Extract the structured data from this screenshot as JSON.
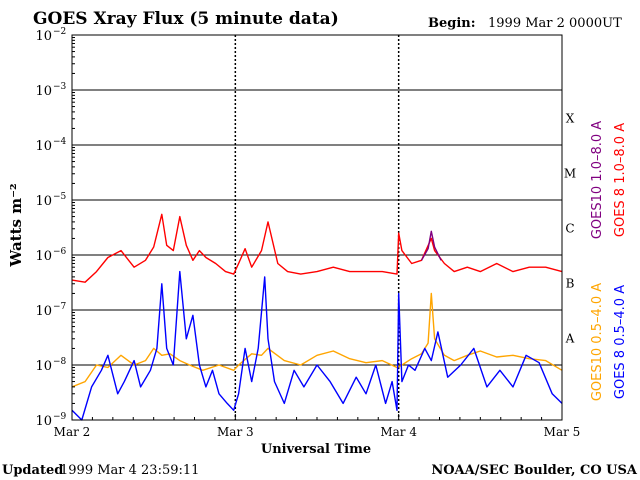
{
  "header": {
    "title": "GOES Xray Flux (5 minute data)",
    "begin_label": "Begin:",
    "begin_value": "1999 Mar 2 0000UT"
  },
  "footer": {
    "updated_label": "Updated",
    "updated_value": "1999 Mar  4 23:59:11",
    "credit": "NOAA/SEC Boulder, CO USA"
  },
  "colors": {
    "goes10_long": "#800080",
    "goes8_long": "#ff0000",
    "goes10_short": "#ffa500",
    "goes8_short": "#0000ff",
    "axes": "#000000"
  },
  "chart_data": {
    "type": "line",
    "title": "GOES Xray Flux (5 minute data)",
    "xlabel": "Universal Time",
    "ylabel": "Watts m⁻²",
    "yscale": "log",
    "ylim": [
      1e-09,
      0.01
    ],
    "xlim": [
      0,
      3
    ],
    "x_unit": "days from 1999 Mar 2 00:00 UT",
    "x_ticks": [
      {
        "x": 0,
        "label": "Mar 2"
      },
      {
        "x": 1,
        "label": "Mar 3"
      },
      {
        "x": 2,
        "label": "Mar 4"
      },
      {
        "x": 3,
        "label": "Mar 5"
      }
    ],
    "y_ticks": [
      {
        "exp": -9,
        "label": "10"
      },
      {
        "exp": -8,
        "label": "10"
      },
      {
        "exp": -7,
        "label": "10"
      },
      {
        "exp": -6,
        "label": "10"
      },
      {
        "exp": -5,
        "label": "10"
      },
      {
        "exp": -4,
        "label": "10"
      },
      {
        "exp": -3,
        "label": "10"
      },
      {
        "exp": -2,
        "label": "10"
      }
    ],
    "flare_classes": [
      {
        "label": "A",
        "exp": -7.5
      },
      {
        "label": "B",
        "exp": -6.5
      },
      {
        "label": "C",
        "exp": -5.5
      },
      {
        "label": "M",
        "exp": -4.5
      },
      {
        "label": "X",
        "exp": -3.5
      }
    ],
    "grid": {
      "horizontal": [
        -8,
        -7,
        -6,
        -5,
        -4,
        -3
      ],
      "day_dividers": [
        1,
        2
      ]
    },
    "legend": [
      {
        "label": "GOES10 1.0–8.0 A",
        "color": "#800080"
      },
      {
        "label": "GOES 8 1.0–8.0 A",
        "color": "#ff0000"
      },
      {
        "label": "GOES10 0.5–4.0 A",
        "color": "#ffa500"
      },
      {
        "label": "GOES 8 0.5–4.0 A",
        "color": "#0000ff"
      }
    ],
    "series": [
      {
        "name": "GOES 8 1.0–8.0 A",
        "color": "#ff0000",
        "x": [
          0,
          0.08,
          0.15,
          0.22,
          0.3,
          0.38,
          0.45,
          0.5,
          0.55,
          0.58,
          0.62,
          0.66,
          0.7,
          0.74,
          0.78,
          0.82,
          0.88,
          0.94,
          0.99,
          1.02,
          1.06,
          1.1,
          1.16,
          1.2,
          1.26,
          1.32,
          1.4,
          1.5,
          1.6,
          1.7,
          1.8,
          1.9,
          1.99,
          2.0,
          2.02,
          2.08,
          2.14,
          2.2,
          2.22,
          2.28,
          2.34,
          2.42,
          2.5,
          2.6,
          2.7,
          2.8,
          2.9,
          3.0
        ],
        "values": [
          3.5e-07,
          3.2e-07,
          5e-07,
          9e-07,
          1.2e-06,
          6e-07,
          8e-07,
          1.4e-06,
          5.5e-06,
          1.5e-06,
          1.2e-06,
          5e-06,
          1.5e-06,
          8e-07,
          1.2e-06,
          9e-07,
          7e-07,
          5e-07,
          4.5e-07,
          7e-07,
          1.3e-06,
          6e-07,
          1.2e-06,
          4e-06,
          7e-07,
          5e-07,
          4.5e-07,
          5e-07,
          6e-07,
          5e-07,
          5e-07,
          5e-07,
          4.5e-07,
          2.5e-06,
          1.2e-06,
          7e-07,
          8e-07,
          2e-06,
          1.2e-06,
          7e-07,
          5e-07,
          6e-07,
          5e-07,
          7e-07,
          5e-07,
          6e-07,
          6e-07,
          5e-07
        ]
      },
      {
        "name": "GOES10 1.0–8.0 A",
        "color": "#800080",
        "x": [
          2.14,
          2.18,
          2.2,
          2.22,
          2.26
        ],
        "values": [
          8e-07,
          1.3e-06,
          2.7e-06,
          1.4e-06,
          8e-07
        ]
      },
      {
        "name": "GOES10 0.5–4.0 A",
        "color": "#ffa500",
        "x": [
          0,
          0.08,
          0.15,
          0.22,
          0.3,
          0.38,
          0.45,
          0.5,
          0.55,
          0.6,
          0.66,
          0.72,
          0.8,
          0.9,
          0.99,
          1.02,
          1.1,
          1.16,
          1.2,
          1.3,
          1.4,
          1.5,
          1.6,
          1.7,
          1.8,
          1.9,
          1.99,
          2.02,
          2.08,
          2.14,
          2.18,
          2.2,
          2.22,
          2.28,
          2.34,
          2.42,
          2.5,
          2.6,
          2.7,
          2.8,
          2.9,
          3.0
        ],
        "values": [
          4e-09,
          5e-09,
          1e-08,
          9e-09,
          1.5e-08,
          1e-08,
          1.2e-08,
          2e-08,
          1.5e-08,
          1.6e-08,
          1.2e-08,
          1e-08,
          8e-09,
          1e-08,
          8e-09,
          1e-08,
          1.6e-08,
          1.5e-08,
          2e-08,
          1.2e-08,
          1e-08,
          1.5e-08,
          1.8e-08,
          1.3e-08,
          1.1e-08,
          1.2e-08,
          9e-09,
          1e-08,
          1.3e-08,
          1.6e-08,
          2.5e-08,
          2e-07,
          3e-08,
          1.5e-08,
          1.2e-08,
          1.5e-08,
          1.8e-08,
          1.4e-08,
          1.5e-08,
          1.3e-08,
          1.2e-08,
          8e-09
        ]
      },
      {
        "name": "GOES 8 0.5–4.0 A",
        "color": "#0000ff",
        "x": [
          0,
          0.06,
          0.12,
          0.18,
          0.22,
          0.28,
          0.32,
          0.38,
          0.42,
          0.48,
          0.52,
          0.55,
          0.58,
          0.62,
          0.66,
          0.7,
          0.74,
          0.78,
          0.82,
          0.86,
          0.9,
          0.95,
          0.99,
          1.02,
          1.06,
          1.1,
          1.14,
          1.18,
          1.2,
          1.24,
          1.3,
          1.36,
          1.42,
          1.5,
          1.58,
          1.66,
          1.74,
          1.8,
          1.86,
          1.92,
          1.96,
          1.99,
          2.0,
          2.02,
          2.06,
          2.1,
          2.16,
          2.2,
          2.24,
          2.3,
          2.38,
          2.46,
          2.54,
          2.62,
          2.7,
          2.78,
          2.86,
          2.94,
          3.0
        ],
        "values": [
          1.5e-09,
          1e-09,
          4e-09,
          8e-09,
          1.5e-08,
          3e-09,
          5e-09,
          1.2e-08,
          4e-09,
          8e-09,
          2e-08,
          3e-07,
          2e-08,
          1e-08,
          5e-07,
          3e-08,
          8e-08,
          1e-08,
          4e-09,
          8e-09,
          3e-09,
          2e-09,
          1.5e-09,
          3e-09,
          2e-08,
          5e-09,
          2e-08,
          4e-07,
          3e-08,
          5e-09,
          2e-09,
          8e-09,
          4e-09,
          1e-08,
          5e-09,
          2e-09,
          6e-09,
          3e-09,
          1e-08,
          2e-09,
          5e-09,
          1.5e-09,
          2e-07,
          5e-09,
          1e-08,
          8e-09,
          2e-08,
          1.2e-08,
          4e-08,
          6e-09,
          1e-08,
          2e-08,
          4e-09,
          8e-09,
          4e-09,
          1.5e-08,
          1.1e-08,
          3e-09,
          2e-09
        ]
      }
    ]
  }
}
